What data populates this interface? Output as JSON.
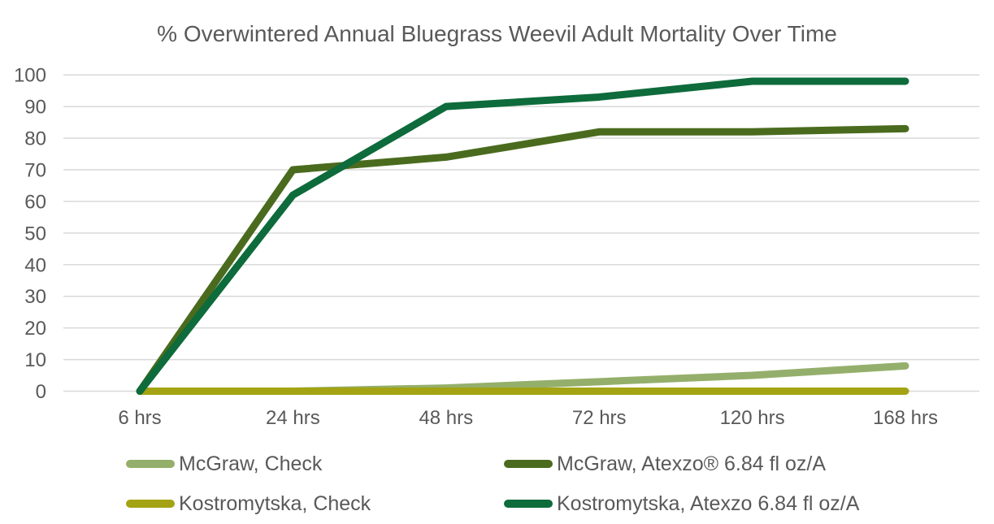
{
  "chart_data": {
    "type": "line",
    "title": "% Overwintered Annual Bluegrass Weevil Adult Mortality Over Time",
    "categories": [
      "6 hrs",
      "24 hrs",
      "48 hrs",
      "72 hrs",
      "120 hrs",
      "168 hrs"
    ],
    "series": [
      {
        "name": "McGraw, Check",
        "color": "#94AF6B",
        "values": [
          0,
          0,
          1,
          3,
          5,
          8
        ]
      },
      {
        "name": "McGraw, Atexzo® 6.84 fl oz/A",
        "color": "#4A6B1E",
        "values": [
          0,
          70,
          74,
          82,
          82,
          83
        ]
      },
      {
        "name": "Kostromytska, Check",
        "color": "#A3A313",
        "values": [
          0,
          0,
          0,
          0,
          0,
          0
        ]
      },
      {
        "name": "Kostromytska, Atexzo 6.84 fl oz/A",
        "color": "#0E6B3B",
        "values": [
          0,
          62,
          90,
          93,
          98,
          98
        ]
      }
    ],
    "yticks": [
      0,
      10,
      20,
      30,
      40,
      50,
      60,
      70,
      80,
      90,
      100
    ],
    "ylim": [
      0,
      100
    ],
    "xlabel": "",
    "ylabel": "",
    "grid": true,
    "legend_position": "bottom",
    "text_color": "#595959",
    "gridline_color": "#D9D9D9",
    "line_width": 9
  }
}
